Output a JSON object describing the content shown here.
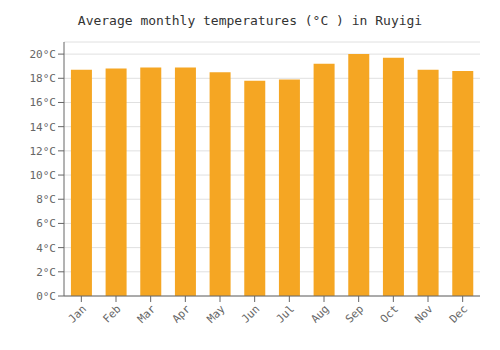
{
  "chart_data": {
    "type": "bar",
    "title": "Average monthly temperatures (°C ) in Ruyigi",
    "categories": [
      "Jan",
      "Feb",
      "Mar",
      "Apr",
      "May",
      "Jun",
      "Jul",
      "Aug",
      "Sep",
      "Oct",
      "Nov",
      "Dec"
    ],
    "values": [
      18.7,
      18.8,
      18.9,
      18.9,
      18.5,
      17.8,
      17.9,
      19.2,
      20.0,
      19.7,
      18.7,
      18.6
    ],
    "color": "#F5A623",
    "ylim": [
      0,
      21
    ],
    "yticks": [
      {
        "value": 0,
        "label": "0°C"
      },
      {
        "value": 2,
        "label": "2°C"
      },
      {
        "value": 4,
        "label": "4°C"
      },
      {
        "value": 6,
        "label": "6°C"
      },
      {
        "value": 8,
        "label": "8°C"
      },
      {
        "value": 10,
        "label": "10°C"
      },
      {
        "value": 12,
        "label": "12°C"
      },
      {
        "value": 14,
        "label": "14°C"
      },
      {
        "value": 16,
        "label": "16°C"
      },
      {
        "value": 18,
        "label": "18°C"
      },
      {
        "value": 20,
        "label": "20°C"
      }
    ],
    "grid": true
  }
}
